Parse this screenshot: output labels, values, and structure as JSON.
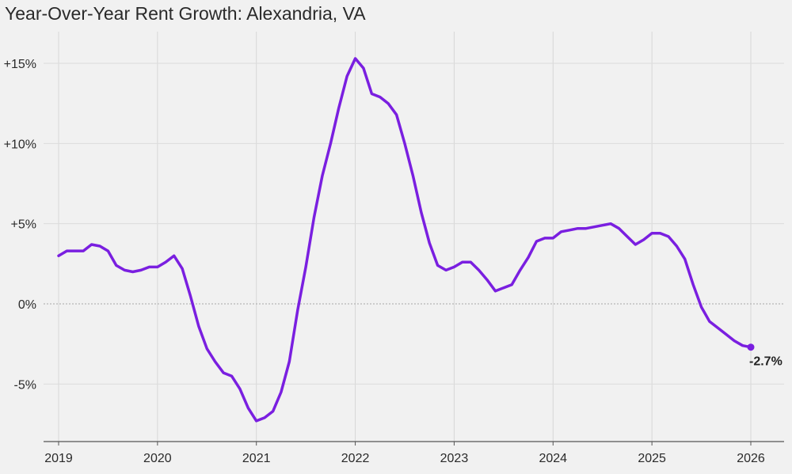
{
  "chart_data": {
    "type": "line",
    "title": "Year-Over-Year Rent Growth: Alexandria, VA",
    "xlabel": "",
    "ylabel": "",
    "xlim": [
      2019,
      2026
    ],
    "ylim": [
      -8.5,
      17
    ],
    "y_ticks": [
      {
        "value": 15,
        "label": "+15%"
      },
      {
        "value": 10,
        "label": "+10%"
      },
      {
        "value": 5,
        "label": "+5%"
      },
      {
        "value": 0,
        "label": "0%"
      },
      {
        "value": -5,
        "label": "-5%"
      }
    ],
    "x_ticks": [
      {
        "value": 2019,
        "label": "2019"
      },
      {
        "value": 2020,
        "label": "2020"
      },
      {
        "value": 2021,
        "label": "2021"
      },
      {
        "value": 2022,
        "label": "2022"
      },
      {
        "value": 2023,
        "label": "2023"
      },
      {
        "value": 2024,
        "label": "2024"
      },
      {
        "value": 2025,
        "label": "2025"
      },
      {
        "value": 2026,
        "label": "2026"
      }
    ],
    "grid": true,
    "line_color": "#7a1fe0",
    "end_label": "-2.7%",
    "series": [
      {
        "name": "",
        "x": [
          2019.0,
          2019.083,
          2019.167,
          2019.25,
          2019.333,
          2019.417,
          2019.5,
          2019.583,
          2019.667,
          2019.75,
          2019.833,
          2019.917,
          2020.0,
          2020.083,
          2020.167,
          2020.25,
          2020.333,
          2020.417,
          2020.5,
          2020.583,
          2020.667,
          2020.75,
          2020.833,
          2020.917,
          2021.0,
          2021.083,
          2021.167,
          2021.25,
          2021.333,
          2021.417,
          2021.5,
          2021.583,
          2021.667,
          2021.75,
          2021.833,
          2021.917,
          2022.0,
          2022.083,
          2022.167,
          2022.25,
          2022.333,
          2022.417,
          2022.5,
          2022.583,
          2022.667,
          2022.75,
          2022.833,
          2022.917,
          2023.0,
          2023.083,
          2023.167,
          2023.25,
          2023.333,
          2023.417,
          2023.5,
          2023.583,
          2023.667,
          2023.75,
          2023.833,
          2023.917,
          2024.0,
          2024.083,
          2024.167,
          2024.25,
          2024.333,
          2024.417,
          2024.5,
          2024.583,
          2024.667,
          2024.75,
          2024.833,
          2024.917,
          2025.0,
          2025.083,
          2025.167,
          2025.25,
          2025.333,
          2025.417,
          2025.5,
          2025.583,
          2025.667,
          2025.75,
          2025.833,
          2025.917,
          2026.0
        ],
        "values": [
          3.0,
          3.3,
          3.3,
          3.3,
          3.7,
          3.6,
          3.3,
          2.4,
          2.1,
          2.0,
          2.1,
          2.3,
          2.3,
          2.6,
          3.0,
          2.2,
          0.5,
          -1.4,
          -2.8,
          -3.6,
          -4.3,
          -4.5,
          -5.3,
          -6.5,
          -7.3,
          -7.1,
          -6.7,
          -5.5,
          -3.6,
          -0.4,
          2.3,
          5.4,
          8.0,
          10.0,
          12.2,
          14.2,
          15.3,
          14.7,
          13.1,
          12.9,
          12.5,
          11.8,
          10.0,
          8.0,
          5.7,
          3.8,
          2.4,
          2.1,
          2.3,
          2.6,
          2.6,
          2.1,
          1.5,
          0.8,
          1.0,
          1.2,
          2.1,
          2.9,
          3.9,
          4.1,
          4.1,
          4.5,
          4.6,
          4.7,
          4.7,
          4.8,
          4.9,
          5.0,
          4.7,
          4.2,
          3.7,
          4.0,
          4.4,
          4.4,
          4.2,
          3.6,
          2.8,
          1.2,
          -0.2,
          -1.1,
          -1.5,
          -1.9,
          -2.3,
          -2.6,
          -2.7
        ]
      }
    ]
  }
}
